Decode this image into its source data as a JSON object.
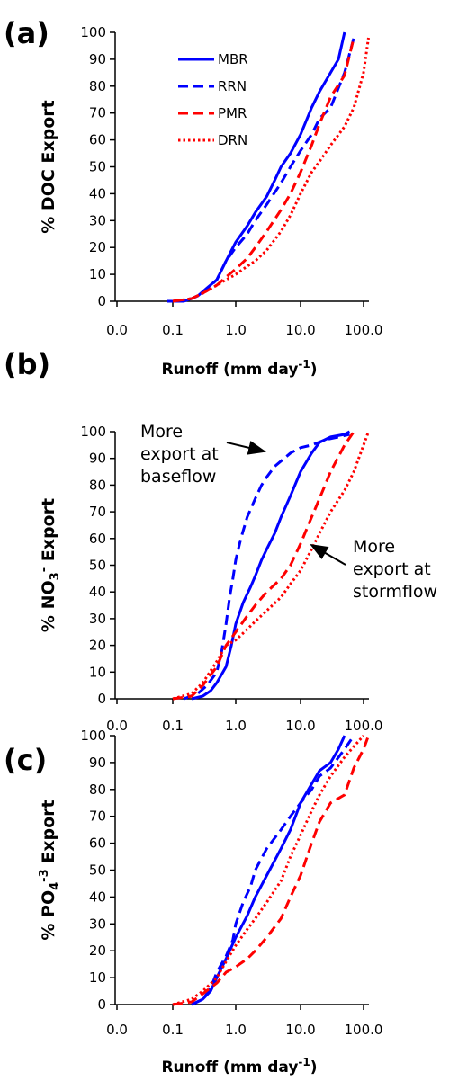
{
  "chart_data": [
    {
      "type": "line",
      "panel_label": "(a)",
      "ylabel": "% DOC Export",
      "xlabel": "Runoff (mm day-1)",
      "xlabel_parts": {
        "main": "Runoff (mm day",
        "sup": "-1",
        "tail": ")"
      },
      "xscale": "log",
      "xticks": [
        "0.0",
        "0.1",
        "1.0",
        "10.0",
        "100.0"
      ],
      "yticks": [
        0,
        10,
        20,
        30,
        40,
        50,
        60,
        70,
        80,
        90,
        100
      ],
      "ylim": [
        0,
        100
      ],
      "legend": "top-left",
      "series": [
        {
          "name": "MBR",
          "color": "#0000ff",
          "dash": "solid",
          "x": [
            0.08,
            0.15,
            0.2,
            0.25,
            0.35,
            0.5,
            0.7,
            1.0,
            1.5,
            2.0,
            3.0,
            4.0,
            5.0,
            7.0,
            10.0,
            15.0,
            20.0,
            30.0,
            40.0,
            50.0
          ],
          "y": [
            0,
            0,
            1,
            2,
            5,
            8,
            15,
            22,
            28,
            33,
            39,
            45,
            50,
            55,
            62,
            72,
            78,
            85,
            90,
            100
          ]
        },
        {
          "name": "RRN",
          "color": "#0000ff",
          "dash": "dashed",
          "x": [
            0.1,
            0.2,
            0.3,
            0.5,
            0.7,
            1.0,
            1.5,
            2.0,
            3.0,
            5.0,
            7.0,
            10.0,
            15.0,
            20.0,
            30.0,
            50.0,
            70.0
          ],
          "y": [
            0,
            1,
            3,
            8,
            15,
            20,
            25,
            30,
            36,
            44,
            50,
            56,
            62,
            68,
            72,
            85,
            98
          ]
        },
        {
          "name": "PMR",
          "color": "#ff0000",
          "dash": "dashed",
          "x": [
            0.1,
            0.2,
            0.3,
            0.5,
            0.7,
            1.0,
            1.5,
            2.0,
            3.0,
            5.0,
            7.0,
            10.0,
            15.0,
            20.0,
            30.0,
            50.0,
            70.0
          ],
          "y": [
            0,
            1,
            3,
            6,
            9,
            12,
            16,
            20,
            26,
            34,
            40,
            48,
            58,
            66,
            76,
            84,
            98
          ]
        },
        {
          "name": "DRN",
          "color": "#ff0000",
          "dash": "dotted",
          "x": [
            0.1,
            0.2,
            0.3,
            0.5,
            0.7,
            1.0,
            1.5,
            2.0,
            3.0,
            5.0,
            7.0,
            10.0,
            15.0,
            20.0,
            30.0,
            50.0,
            70.0,
            100.0,
            120.0
          ],
          "y": [
            0,
            1,
            3,
            6,
            8,
            10,
            13,
            15,
            19,
            26,
            32,
            40,
            48,
            52,
            58,
            65,
            72,
            85,
            98
          ]
        }
      ]
    },
    {
      "type": "line",
      "panel_label": "(b)",
      "ylabel": "% NO3- Export",
      "ylabel_parts": {
        "pre": "% NO",
        "sub": "3",
        "sup": "-",
        "post": " Export"
      },
      "xscale": "log",
      "xticks": [
        "0.0",
        "0.1",
        "1.0",
        "10.0",
        "100.0"
      ],
      "yticks": [
        0,
        10,
        20,
        30,
        40,
        50,
        60,
        70,
        80,
        90,
        100
      ],
      "ylim": [
        0,
        100
      ],
      "annotations": [
        {
          "lines": [
            "More",
            "export at",
            "baseflow"
          ]
        },
        {
          "lines": [
            "More",
            "export at",
            "stormflow"
          ]
        }
      ],
      "series": [
        {
          "name": "MBR",
          "color": "#0000ff",
          "dash": "solid",
          "x": [
            0.2,
            0.3,
            0.4,
            0.5,
            0.7,
            0.85,
            1.0,
            1.3,
            1.7,
            2.0,
            2.5,
            3.0,
            4.0,
            5.0,
            7.0,
            10.0,
            15.0,
            20.0,
            30.0,
            50.0,
            60.0
          ],
          "y": [
            0,
            1,
            3,
            6,
            12,
            20,
            28,
            36,
            42,
            46,
            52,
            56,
            62,
            68,
            76,
            85,
            92,
            96,
            98,
            99,
            100
          ]
        },
        {
          "name": "RRN",
          "color": "#0000ff",
          "dash": "dashed",
          "x": [
            0.15,
            0.25,
            0.35,
            0.5,
            0.6,
            0.7,
            0.8,
            0.9,
            1.0,
            1.2,
            1.5,
            2.0,
            2.5,
            3.0,
            4.0,
            5.0,
            7.0,
            10.0,
            15.0,
            25.0,
            40.0,
            60.0
          ],
          "y": [
            0,
            2,
            5,
            10,
            18,
            28,
            38,
            45,
            52,
            60,
            68,
            75,
            80,
            83,
            87,
            89,
            92,
            94,
            95,
            97,
            98,
            99
          ]
        },
        {
          "name": "PMR",
          "color": "#ff0000",
          "dash": "dashed",
          "x": [
            0.1,
            0.2,
            0.3,
            0.5,
            0.7,
            1.0,
            1.5,
            2.0,
            3.0,
            5.0,
            7.0,
            10.0,
            15.0,
            20.0,
            30.0,
            50.0,
            70.0
          ],
          "y": [
            0,
            1,
            5,
            12,
            20,
            25,
            31,
            35,
            40,
            45,
            50,
            58,
            68,
            75,
            85,
            95,
            100
          ]
        },
        {
          "name": "DRN",
          "color": "#ff0000",
          "dash": "dotted",
          "x": [
            0.1,
            0.2,
            0.3,
            0.5,
            0.7,
            1.0,
            1.5,
            2.0,
            3.0,
            5.0,
            7.0,
            10.0,
            15.0,
            20.0,
            30.0,
            50.0,
            70.0,
            100.0,
            120.0
          ],
          "y": [
            0,
            2,
            6,
            14,
            20,
            22,
            26,
            29,
            33,
            38,
            43,
            48,
            56,
            62,
            70,
            78,
            85,
            95,
            100
          ]
        }
      ]
    },
    {
      "type": "line",
      "panel_label": "(c)",
      "ylabel": "% PO4-3 Export",
      "ylabel_parts": {
        "pre": "% PO",
        "sub": "4",
        "sup": "-3",
        "post": " Export"
      },
      "xlabel": "Runoff (mm day-1)",
      "xlabel_parts": {
        "main": "Runoff (mm day",
        "sup": "-1",
        "tail": ")"
      },
      "xscale": "log",
      "xticks": [
        "0.0",
        "0.1",
        "1.0",
        "10.0",
        "100.0"
      ],
      "yticks": [
        0,
        10,
        20,
        30,
        40,
        50,
        60,
        70,
        80,
        90,
        100
      ],
      "ylim": [
        0,
        100
      ],
      "series": [
        {
          "name": "MBR",
          "color": "#0000ff",
          "dash": "solid",
          "x": [
            0.2,
            0.3,
            0.4,
            0.5,
            0.7,
            1.0,
            1.5,
            2.0,
            3.0,
            5.0,
            7.0,
            10.0,
            15.0,
            20.0,
            30.0,
            40.0,
            50.0
          ],
          "y": [
            0,
            2,
            5,
            10,
            17,
            25,
            33,
            40,
            48,
            58,
            65,
            75,
            82,
            87,
            90,
            95,
            100
          ]
        },
        {
          "name": "RRN",
          "color": "#0000ff",
          "dash": "dashed",
          "x": [
            0.2,
            0.3,
            0.4,
            0.5,
            0.7,
            0.9,
            1.0,
            1.3,
            1.7,
            2.0,
            3.0,
            5.0,
            7.0,
            10.0,
            15.0,
            20.0,
            30.0,
            50.0,
            70.0
          ],
          "y": [
            0,
            2,
            6,
            12,
            18,
            24,
            30,
            38,
            44,
            50,
            58,
            65,
            70,
            75,
            80,
            85,
            88,
            95,
            100
          ]
        },
        {
          "name": "PMR",
          "color": "#ff0000",
          "dash": "dashed",
          "x": [
            0.1,
            0.2,
            0.3,
            0.5,
            0.7,
            1.0,
            1.5,
            2.0,
            3.0,
            5.0,
            7.0,
            10.0,
            15.0,
            20.0,
            30.0,
            50.0,
            70.0,
            100.0,
            120.0
          ],
          "y": [
            0,
            1,
            4,
            8,
            12,
            14,
            17,
            20,
            25,
            32,
            40,
            48,
            60,
            68,
            75,
            78,
            88,
            95,
            100
          ]
        },
        {
          "name": "DRN",
          "color": "#ff0000",
          "dash": "dotted",
          "x": [
            0.1,
            0.2,
            0.3,
            0.5,
            0.7,
            1.0,
            1.5,
            2.0,
            3.0,
            5.0,
            7.0,
            10.0,
            15.0,
            20.0,
            30.0,
            50.0,
            70.0,
            100.0
          ],
          "y": [
            0,
            2,
            5,
            10,
            16,
            22,
            28,
            32,
            38,
            46,
            55,
            63,
            72,
            78,
            85,
            92,
            96,
            100
          ]
        }
      ]
    }
  ]
}
